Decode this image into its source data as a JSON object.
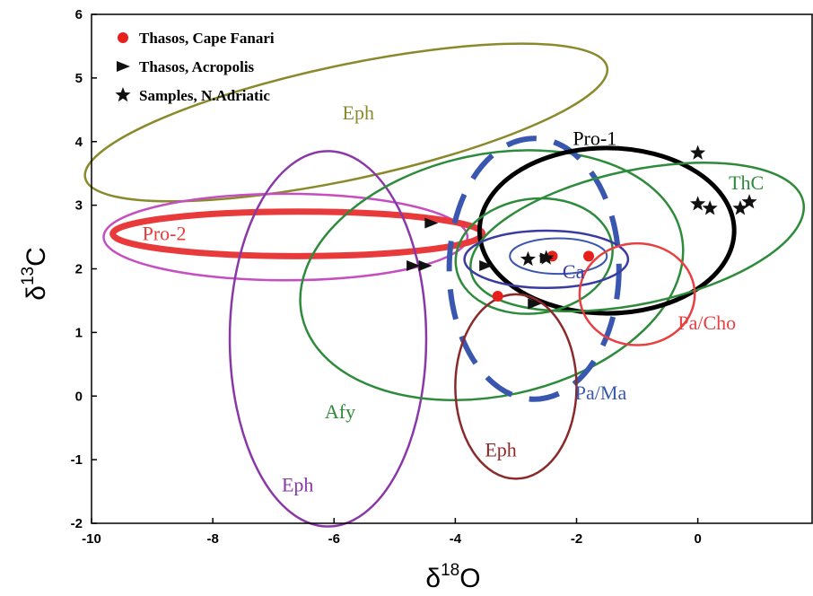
{
  "chart_data": {
    "type": "scatter",
    "xlabel": {
      "base": "δ",
      "sup": "18",
      "rest": "O"
    },
    "ylabel": {
      "base": "δ",
      "sup": "13",
      "rest": "C"
    },
    "xlim": [
      -10,
      1.9
    ],
    "ylim": [
      -2,
      6
    ],
    "x_ticks": [
      "-10",
      "-8",
      "-6",
      "-4",
      "-2",
      "0",
      "2"
    ],
    "y_ticks": [
      "-2",
      "-1",
      "0",
      "1",
      "2",
      "3",
      "4",
      "5",
      "6"
    ],
    "grid": false,
    "legend_position": "top-left",
    "legend": [
      {
        "label": "Thasos, Cape Fanari",
        "marker": "circle",
        "color": "#e8201c"
      },
      {
        "label": "Thasos, Acropolis",
        "marker": "triangle",
        "color": "#111111"
      },
      {
        "label": "Samples, N.Adriatic",
        "marker": "star",
        "color": "#111111"
      }
    ],
    "regions": [
      {
        "label": "Eph",
        "cx": -5.8,
        "cy": 4.3,
        "rx": 4.4,
        "ry": 0.9,
        "angle": 12,
        "color": "#8a8a2c",
        "width": 2.5,
        "dash": "",
        "label_x": -5.6,
        "label_y": 4.35
      },
      {
        "label": "Pro-2",
        "cx": -6.8,
        "cy": 2.5,
        "rx": 3.0,
        "ry": 0.68,
        "angle": 0,
        "color": "#c54ec0",
        "width": 2.5,
        "dash": "",
        "label_x": null,
        "label_y": null
      },
      {
        "label": "Pro-2",
        "cx": -6.6,
        "cy": 2.55,
        "rx": 3.05,
        "ry": 0.35,
        "angle": 0,
        "color": "#e83a3a",
        "width": 7,
        "dash": "",
        "label_x": -8.8,
        "label_y": 2.45
      },
      {
        "label": "Eph",
        "cx": -6.1,
        "cy": 0.9,
        "rx": 1.62,
        "ry": 2.95,
        "angle": 0,
        "color": "#8a38a8",
        "width": 2.5,
        "dash": "",
        "label_x": -6.6,
        "label_y": -1.5
      },
      {
        "label": "Afy",
        "cx": -3.4,
        "cy": 1.9,
        "rx": 3.2,
        "ry": 1.9,
        "angle": 12,
        "color": "#2e8b3c",
        "width": 2.5,
        "dash": "",
        "label_x": -5.9,
        "label_y": -0.35
      },
      {
        "label": "Pa/Ma",
        "cx": -2.7,
        "cy": 2.0,
        "rx": 1.4,
        "ry": 2.05,
        "angle": 0,
        "color": "#3a57b0",
        "width": 6,
        "dash": "34 20",
        "label_x": -1.6,
        "label_y": -0.05
      },
      {
        "label": "Pro-1",
        "cx": -1.5,
        "cy": 2.6,
        "rx": 2.1,
        "ry": 1.3,
        "angle": 0,
        "color": "#000000",
        "width": 5,
        "dash": "",
        "label_x": -1.7,
        "label_y": 3.95
      },
      {
        "label": "ThC",
        "cx": -1.0,
        "cy": 2.5,
        "rx": 2.8,
        "ry": 1.05,
        "angle": 12,
        "color": "#2e8b3c",
        "width": 2.5,
        "dash": "",
        "label_x": 0.8,
        "label_y": 3.25
      },
      {
        "label": "",
        "cx": -2.7,
        "cy": 2.2,
        "rx": 1.3,
        "ry": 0.9,
        "angle": 8,
        "color": "#2e8b3c",
        "width": 2.5,
        "dash": "",
        "label_x": null,
        "label_y": null
      },
      {
        "label": "Ca",
        "cx": -2.5,
        "cy": 2.15,
        "rx": 1.35,
        "ry": 0.45,
        "angle": 0,
        "color": "#3a3aa0",
        "width": 2.5,
        "dash": "",
        "label_x": -2.05,
        "label_y": 1.85
      },
      {
        "label": "",
        "cx": -2.3,
        "cy": 2.2,
        "rx": 0.8,
        "ry": 0.28,
        "angle": 0,
        "color": "#3a57b0",
        "width": 2,
        "dash": "",
        "label_x": null,
        "label_y": null
      },
      {
        "label": "Pa/Cho",
        "cx": -1.0,
        "cy": 1.6,
        "rx": 0.95,
        "ry": 0.8,
        "angle": 0,
        "color": "#e84040",
        "width": 2.5,
        "dash": "",
        "label_x": 0.15,
        "label_y": 1.05
      },
      {
        "label": "Eph",
        "cx": -3.0,
        "cy": 0.15,
        "rx": 1.0,
        "ry": 1.45,
        "angle": 0,
        "color": "#8a2a2a",
        "width": 2.5,
        "dash": "",
        "label_x": -3.25,
        "label_y": -0.95
      }
    ],
    "series": [
      {
        "name": "Thasos, Cape Fanari",
        "marker": "circle",
        "color": "#e8201c",
        "points": [
          [
            -2.4,
            2.2
          ],
          [
            -1.8,
            2.2
          ],
          [
            -3.3,
            1.57
          ]
        ]
      },
      {
        "name": "Thasos, Acropolis",
        "marker": "triangle",
        "color": "#111111",
        "points": [
          [
            -4.4,
            2.72
          ],
          [
            -4.7,
            2.05
          ],
          [
            -4.5,
            2.05
          ],
          [
            -3.5,
            2.05
          ],
          [
            -2.5,
            2.17
          ],
          [
            -2.7,
            1.45
          ]
        ]
      },
      {
        "name": "Samples, N.Adriatic",
        "marker": "star",
        "color": "#111111",
        "points": [
          [
            0.0,
            3.82
          ],
          [
            -2.8,
            2.15
          ],
          [
            -2.5,
            2.17
          ],
          [
            0.0,
            3.02
          ],
          [
            0.2,
            2.95
          ],
          [
            0.7,
            2.95
          ],
          [
            0.85,
            3.05
          ]
        ]
      }
    ]
  }
}
